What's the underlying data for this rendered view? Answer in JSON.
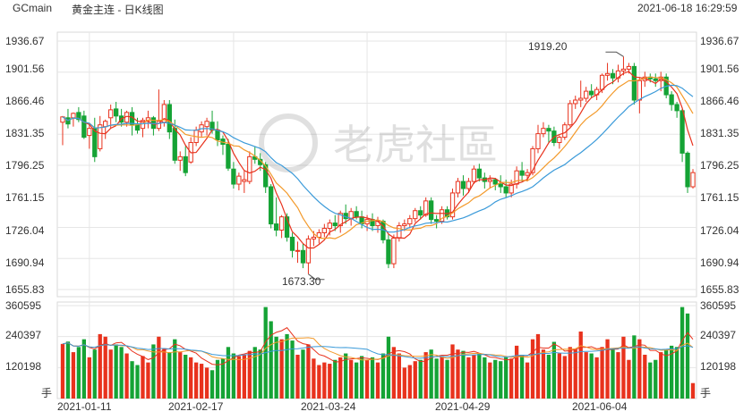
{
  "header": {
    "symbol": "GCmain",
    "title": "黄金主连 - 日K线图",
    "timestamp": "2021-06-18 16:29:59"
  },
  "watermark": "老虎社區",
  "colors": {
    "up": "#e8321d",
    "down": "#15a335",
    "ma5": "#e8321d",
    "ma10": "#f39a2b",
    "ma20": "#3a9ad9",
    "grid": "#e6e6e6"
  },
  "price_axis": {
    "ticks": [
      "1936.67",
      "1901.56",
      "1866.46",
      "1831.35",
      "1796.25",
      "1761.15",
      "1726.04",
      "1690.94",
      "1655.83"
    ]
  },
  "volume_axis": {
    "ticks": [
      "360595",
      "240397",
      "120198"
    ],
    "unit": "手"
  },
  "x_axis": {
    "ticks": [
      "2021-01-11",
      "2021-02-17",
      "2021-03-24",
      "2021-04-29",
      "2021-06-04"
    ]
  },
  "annotations": {
    "high_label": "1919.20",
    "low_label": "1673.30"
  },
  "chart_data": {
    "type": "candlestick",
    "title": "黄金主连 - 日K线图",
    "ylim": [
      1655.83,
      1936.67
    ],
    "volume_ylim": [
      0,
      360595
    ],
    "max_point": {
      "label": "1919.20",
      "value": 1919.2
    },
    "min_point": {
      "label": "1673.30",
      "value": 1673.3
    },
    "moving_averages": [
      {
        "period": 5,
        "color": "#e8321d"
      },
      {
        "period": 10,
        "color": "#f39a2b"
      },
      {
        "period": 20,
        "color": "#3a9ad9"
      }
    ],
    "candles": [
      {
        "date": "2021-01-04",
        "o": 1845,
        "h": 1852,
        "l": 1819,
        "c": 1851,
        "v": 212000
      },
      {
        "date": "2021-01-05",
        "o": 1850,
        "h": 1860,
        "l": 1838,
        "c": 1843,
        "v": 221000
      },
      {
        "date": "2021-01-06",
        "o": 1850,
        "h": 1856,
        "l": 1840,
        "c": 1855,
        "v": 180000
      },
      {
        "date": "2021-01-07",
        "o": 1856,
        "h": 1862,
        "l": 1845,
        "c": 1848,
        "v": 200000
      },
      {
        "date": "2021-01-08",
        "o": 1852,
        "h": 1858,
        "l": 1826,
        "c": 1828,
        "v": 230000
      },
      {
        "date": "2021-01-11",
        "o": 1830,
        "h": 1842,
        "l": 1815,
        "c": 1838,
        "v": 160000
      },
      {
        "date": "2021-01-12",
        "o": 1838,
        "h": 1850,
        "l": 1800,
        "c": 1806,
        "v": 190000
      },
      {
        "date": "2021-01-13",
        "o": 1815,
        "h": 1852,
        "l": 1812,
        "c": 1842,
        "v": 250000
      },
      {
        "date": "2021-01-14",
        "o": 1840,
        "h": 1848,
        "l": 1826,
        "c": 1846,
        "v": 240000
      },
      {
        "date": "2021-01-15",
        "o": 1850,
        "h": 1865,
        "l": 1838,
        "c": 1859,
        "v": 190000
      },
      {
        "date": "2021-01-18",
        "o": 1860,
        "h": 1868,
        "l": 1845,
        "c": 1852,
        "v": 210000
      },
      {
        "date": "2021-01-19",
        "o": 1852,
        "h": 1860,
        "l": 1840,
        "c": 1845,
        "v": 200000
      },
      {
        "date": "2021-01-20",
        "o": 1845,
        "h": 1858,
        "l": 1840,
        "c": 1856,
        "v": 175000
      },
      {
        "date": "2021-01-21",
        "o": 1856,
        "h": 1862,
        "l": 1830,
        "c": 1842,
        "v": 145000
      },
      {
        "date": "2021-01-22",
        "o": 1842,
        "h": 1850,
        "l": 1832,
        "c": 1836,
        "v": 130000
      },
      {
        "date": "2021-01-25",
        "o": 1838,
        "h": 1850,
        "l": 1828,
        "c": 1847,
        "v": 165000
      },
      {
        "date": "2021-01-26",
        "o": 1847,
        "h": 1858,
        "l": 1838,
        "c": 1850,
        "v": 140000
      },
      {
        "date": "2021-01-27",
        "o": 1850,
        "h": 1852,
        "l": 1830,
        "c": 1838,
        "v": 210000
      },
      {
        "date": "2021-01-28",
        "o": 1838,
        "h": 1882,
        "l": 1835,
        "c": 1846,
        "v": 240000
      },
      {
        "date": "2021-01-29",
        "o": 1845,
        "h": 1870,
        "l": 1840,
        "c": 1865,
        "v": 195000
      },
      {
        "date": "2021-02-01",
        "o": 1865,
        "h": 1870,
        "l": 1826,
        "c": 1834,
        "v": 180000
      },
      {
        "date": "2021-02-02",
        "o": 1838,
        "h": 1848,
        "l": 1798,
        "c": 1802,
        "v": 230000
      },
      {
        "date": "2021-02-03",
        "o": 1802,
        "h": 1812,
        "l": 1790,
        "c": 1806,
        "v": 180000
      },
      {
        "date": "2021-02-04",
        "o": 1806,
        "h": 1818,
        "l": 1784,
        "c": 1788,
        "v": 170000
      },
      {
        "date": "2021-02-05",
        "o": 1800,
        "h": 1828,
        "l": 1798,
        "c": 1822,
        "v": 160000
      },
      {
        "date": "2021-02-08",
        "o": 1822,
        "h": 1840,
        "l": 1818,
        "c": 1836,
        "v": 140000
      },
      {
        "date": "2021-02-09",
        "o": 1834,
        "h": 1846,
        "l": 1828,
        "c": 1842,
        "v": 135000
      },
      {
        "date": "2021-02-10",
        "o": 1840,
        "h": 1850,
        "l": 1830,
        "c": 1846,
        "v": 120000
      },
      {
        "date": "2021-02-11",
        "o": 1845,
        "h": 1858,
        "l": 1832,
        "c": 1836,
        "v": 110000
      },
      {
        "date": "2021-02-12",
        "o": 1836,
        "h": 1846,
        "l": 1818,
        "c": 1825,
        "v": 150000
      },
      {
        "date": "2021-02-15",
        "o": 1826,
        "h": 1830,
        "l": 1808,
        "c": 1820,
        "v": 155000
      },
      {
        "date": "2021-02-16",
        "o": 1820,
        "h": 1826,
        "l": 1790,
        "c": 1793,
        "v": 200000
      },
      {
        "date": "2021-02-17",
        "o": 1792,
        "h": 1800,
        "l": 1770,
        "c": 1775,
        "v": 175000
      },
      {
        "date": "2021-02-18",
        "o": 1775,
        "h": 1788,
        "l": 1768,
        "c": 1784,
        "v": 165000
      },
      {
        "date": "2021-02-19",
        "o": 1778,
        "h": 1790,
        "l": 1765,
        "c": 1780,
        "v": 170000
      },
      {
        "date": "2021-02-22",
        "o": 1778,
        "h": 1812,
        "l": 1775,
        "c": 1806,
        "v": 185000
      },
      {
        "date": "2021-02-23",
        "o": 1806,
        "h": 1818,
        "l": 1798,
        "c": 1803,
        "v": 200000
      },
      {
        "date": "2021-02-24",
        "o": 1803,
        "h": 1810,
        "l": 1790,
        "c": 1797,
        "v": 190000
      },
      {
        "date": "2021-02-25",
        "o": 1797,
        "h": 1800,
        "l": 1765,
        "c": 1772,
        "v": 355000
      },
      {
        "date": "2021-02-26",
        "o": 1772,
        "h": 1775,
        "l": 1725,
        "c": 1730,
        "v": 300000
      },
      {
        "date": "2021-03-01",
        "o": 1730,
        "h": 1760,
        "l": 1716,
        "c": 1723,
        "v": 240000
      },
      {
        "date": "2021-03-02",
        "o": 1723,
        "h": 1740,
        "l": 1714,
        "c": 1738,
        "v": 230000
      },
      {
        "date": "2021-03-03",
        "o": 1738,
        "h": 1742,
        "l": 1710,
        "c": 1715,
        "v": 250000
      },
      {
        "date": "2021-03-04",
        "o": 1715,
        "h": 1720,
        "l": 1692,
        "c": 1700,
        "v": 225000
      },
      {
        "date": "2021-03-05",
        "o": 1700,
        "h": 1710,
        "l": 1686,
        "c": 1700,
        "v": 170000
      },
      {
        "date": "2021-03-08",
        "o": 1700,
        "h": 1708,
        "l": 1680,
        "c": 1686,
        "v": 190000
      },
      {
        "date": "2021-03-09",
        "o": 1686,
        "h": 1717,
        "l": 1673.3,
        "c": 1713,
        "v": 210000
      },
      {
        "date": "2021-03-10",
        "o": 1713,
        "h": 1722,
        "l": 1705,
        "c": 1715,
        "v": 155000
      },
      {
        "date": "2021-03-11",
        "o": 1715,
        "h": 1724,
        "l": 1708,
        "c": 1720,
        "v": 130000
      },
      {
        "date": "2021-03-12",
        "o": 1720,
        "h": 1730,
        "l": 1715,
        "c": 1725,
        "v": 140000
      },
      {
        "date": "2021-03-15",
        "o": 1725,
        "h": 1735,
        "l": 1717,
        "c": 1731,
        "v": 135000
      },
      {
        "date": "2021-03-16",
        "o": 1731,
        "h": 1740,
        "l": 1722,
        "c": 1728,
        "v": 150000
      },
      {
        "date": "2021-03-17",
        "o": 1728,
        "h": 1745,
        "l": 1720,
        "c": 1742,
        "v": 160000
      },
      {
        "date": "2021-03-18",
        "o": 1742,
        "h": 1752,
        "l": 1730,
        "c": 1736,
        "v": 175000
      },
      {
        "date": "2021-03-19",
        "o": 1736,
        "h": 1748,
        "l": 1728,
        "c": 1744,
        "v": 150000
      },
      {
        "date": "2021-03-22",
        "o": 1744,
        "h": 1750,
        "l": 1735,
        "c": 1738,
        "v": 140000
      },
      {
        "date": "2021-03-23",
        "o": 1738,
        "h": 1745,
        "l": 1725,
        "c": 1730,
        "v": 165000
      },
      {
        "date": "2021-03-24",
        "o": 1730,
        "h": 1740,
        "l": 1722,
        "c": 1735,
        "v": 150000
      },
      {
        "date": "2021-03-25",
        "o": 1735,
        "h": 1742,
        "l": 1722,
        "c": 1728,
        "v": 160000
      },
      {
        "date": "2021-03-26",
        "o": 1728,
        "h": 1738,
        "l": 1720,
        "c": 1733,
        "v": 140000
      },
      {
        "date": "2021-03-29",
        "o": 1733,
        "h": 1735,
        "l": 1708,
        "c": 1712,
        "v": 175000
      },
      {
        "date": "2021-03-30",
        "o": 1712,
        "h": 1718,
        "l": 1680,
        "c": 1685,
        "v": 240000
      },
      {
        "date": "2021-03-31",
        "o": 1685,
        "h": 1718,
        "l": 1680,
        "c": 1714,
        "v": 200000
      },
      {
        "date": "2021-04-01",
        "o": 1714,
        "h": 1732,
        "l": 1710,
        "c": 1728,
        "v": 175000
      },
      {
        "date": "2021-04-02",
        "o": 1728,
        "h": 1735,
        "l": 1722,
        "c": 1730,
        "v": 120000
      },
      {
        "date": "2021-04-05",
        "o": 1730,
        "h": 1740,
        "l": 1725,
        "c": 1736,
        "v": 130000
      },
      {
        "date": "2021-04-06",
        "o": 1736,
        "h": 1748,
        "l": 1732,
        "c": 1745,
        "v": 145000
      },
      {
        "date": "2021-04-07",
        "o": 1745,
        "h": 1750,
        "l": 1735,
        "c": 1740,
        "v": 150000
      },
      {
        "date": "2021-04-08",
        "o": 1740,
        "h": 1760,
        "l": 1738,
        "c": 1756,
        "v": 180000
      },
      {
        "date": "2021-04-09",
        "o": 1756,
        "h": 1760,
        "l": 1730,
        "c": 1735,
        "v": 190000
      },
      {
        "date": "2021-04-12",
        "o": 1735,
        "h": 1740,
        "l": 1725,
        "c": 1733,
        "v": 155000
      },
      {
        "date": "2021-04-13",
        "o": 1733,
        "h": 1750,
        "l": 1730,
        "c": 1746,
        "v": 165000
      },
      {
        "date": "2021-04-14",
        "o": 1746,
        "h": 1750,
        "l": 1735,
        "c": 1738,
        "v": 150000
      },
      {
        "date": "2021-04-15",
        "o": 1738,
        "h": 1770,
        "l": 1735,
        "c": 1765,
        "v": 210000
      },
      {
        "date": "2021-04-16",
        "o": 1765,
        "h": 1782,
        "l": 1760,
        "c": 1778,
        "v": 190000
      },
      {
        "date": "2021-04-19",
        "o": 1778,
        "h": 1785,
        "l": 1762,
        "c": 1770,
        "v": 185000
      },
      {
        "date": "2021-04-20",
        "o": 1770,
        "h": 1782,
        "l": 1765,
        "c": 1778,
        "v": 160000
      },
      {
        "date": "2021-04-21",
        "o": 1778,
        "h": 1796,
        "l": 1775,
        "c": 1792,
        "v": 170000
      },
      {
        "date": "2021-04-22",
        "o": 1792,
        "h": 1798,
        "l": 1778,
        "c": 1782,
        "v": 175000
      },
      {
        "date": "2021-04-23",
        "o": 1782,
        "h": 1788,
        "l": 1770,
        "c": 1778,
        "v": 160000
      },
      {
        "date": "2021-04-26",
        "o": 1778,
        "h": 1785,
        "l": 1770,
        "c": 1780,
        "v": 140000
      },
      {
        "date": "2021-04-27",
        "o": 1780,
        "h": 1782,
        "l": 1768,
        "c": 1775,
        "v": 150000
      },
      {
        "date": "2021-04-28",
        "o": 1775,
        "h": 1785,
        "l": 1765,
        "c": 1772,
        "v": 145000
      },
      {
        "date": "2021-04-29",
        "o": 1772,
        "h": 1780,
        "l": 1760,
        "c": 1765,
        "v": 160000
      },
      {
        "date": "2021-04-30",
        "o": 1765,
        "h": 1780,
        "l": 1760,
        "c": 1775,
        "v": 155000
      },
      {
        "date": "2021-05-03",
        "o": 1775,
        "h": 1795,
        "l": 1770,
        "c": 1790,
        "v": 205000
      },
      {
        "date": "2021-05-04",
        "o": 1790,
        "h": 1800,
        "l": 1778,
        "c": 1785,
        "v": 170000
      },
      {
        "date": "2021-05-05",
        "o": 1785,
        "h": 1792,
        "l": 1778,
        "c": 1788,
        "v": 140000
      },
      {
        "date": "2021-05-06",
        "o": 1788,
        "h": 1818,
        "l": 1785,
        "c": 1815,
        "v": 230000
      },
      {
        "date": "2021-05-07",
        "o": 1815,
        "h": 1842,
        "l": 1810,
        "c": 1832,
        "v": 250000
      },
      {
        "date": "2021-05-10",
        "o": 1832,
        "h": 1845,
        "l": 1828,
        "c": 1838,
        "v": 190000
      },
      {
        "date": "2021-05-11",
        "o": 1838,
        "h": 1842,
        "l": 1822,
        "c": 1835,
        "v": 170000
      },
      {
        "date": "2021-05-12",
        "o": 1835,
        "h": 1840,
        "l": 1818,
        "c": 1822,
        "v": 220000
      },
      {
        "date": "2021-05-13",
        "o": 1822,
        "h": 1830,
        "l": 1815,
        "c": 1828,
        "v": 175000
      },
      {
        "date": "2021-05-14",
        "o": 1828,
        "h": 1845,
        "l": 1825,
        "c": 1842,
        "v": 165000
      },
      {
        "date": "2021-05-17",
        "o": 1842,
        "h": 1870,
        "l": 1840,
        "c": 1866,
        "v": 200000
      },
      {
        "date": "2021-05-18",
        "o": 1866,
        "h": 1875,
        "l": 1860,
        "c": 1870,
        "v": 190000
      },
      {
        "date": "2021-05-19",
        "o": 1870,
        "h": 1892,
        "l": 1862,
        "c": 1872,
        "v": 260000
      },
      {
        "date": "2021-05-20",
        "o": 1872,
        "h": 1885,
        "l": 1868,
        "c": 1880,
        "v": 180000
      },
      {
        "date": "2021-05-21",
        "o": 1880,
        "h": 1888,
        "l": 1872,
        "c": 1876,
        "v": 175000
      },
      {
        "date": "2021-05-24",
        "o": 1876,
        "h": 1885,
        "l": 1870,
        "c": 1882,
        "v": 160000
      },
      {
        "date": "2021-05-25",
        "o": 1882,
        "h": 1900,
        "l": 1878,
        "c": 1898,
        "v": 200000
      },
      {
        "date": "2021-05-26",
        "o": 1898,
        "h": 1912,
        "l": 1892,
        "c": 1900,
        "v": 230000
      },
      {
        "date": "2021-05-27",
        "o": 1900,
        "h": 1905,
        "l": 1888,
        "c": 1895,
        "v": 190000
      },
      {
        "date": "2021-05-28",
        "o": 1895,
        "h": 1910,
        "l": 1890,
        "c": 1903,
        "v": 180000
      },
      {
        "date": "2021-06-01",
        "o": 1903,
        "h": 1919.2,
        "l": 1898,
        "c": 1905,
        "v": 240000
      },
      {
        "date": "2021-06-02",
        "o": 1905,
        "h": 1912,
        "l": 1900,
        "c": 1908,
        "v": 150000
      },
      {
        "date": "2021-06-03",
        "o": 1908,
        "h": 1912,
        "l": 1865,
        "c": 1870,
        "v": 245000
      },
      {
        "date": "2021-06-04",
        "o": 1870,
        "h": 1895,
        "l": 1855,
        "c": 1892,
        "v": 230000
      },
      {
        "date": "2021-06-07",
        "o": 1892,
        "h": 1902,
        "l": 1885,
        "c": 1896,
        "v": 170000
      },
      {
        "date": "2021-06-08",
        "o": 1896,
        "h": 1900,
        "l": 1890,
        "c": 1894,
        "v": 140000
      },
      {
        "date": "2021-06-09",
        "o": 1894,
        "h": 1900,
        "l": 1885,
        "c": 1892,
        "v": 150000
      },
      {
        "date": "2021-06-10",
        "o": 1892,
        "h": 1902,
        "l": 1880,
        "c": 1896,
        "v": 180000
      },
      {
        "date": "2021-06-11",
        "o": 1896,
        "h": 1900,
        "l": 1872,
        "c": 1876,
        "v": 190000
      },
      {
        "date": "2021-06-14",
        "o": 1876,
        "h": 1880,
        "l": 1858,
        "c": 1865,
        "v": 205000
      },
      {
        "date": "2021-06-15",
        "o": 1865,
        "h": 1868,
        "l": 1850,
        "c": 1858,
        "v": 200000
      },
      {
        "date": "2021-06-16",
        "o": 1858,
        "h": 1860,
        "l": 1800,
        "c": 1810,
        "v": 355000
      },
      {
        "date": "2021-06-17",
        "o": 1810,
        "h": 1812,
        "l": 1765,
        "c": 1772,
        "v": 330000
      },
      {
        "date": "2021-06-18",
        "o": 1772,
        "h": 1792,
        "l": 1770,
        "c": 1788,
        "v": 60000
      }
    ]
  }
}
